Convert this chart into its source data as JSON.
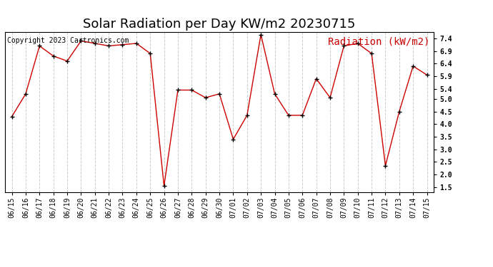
{
  "title": "Solar Radiation per Day KW/m2 20230715",
  "copyright_text": "Copyright 2023 Cartronics.com",
  "legend_label": "Radiation (kW/m2)",
  "dates": [
    "06/15",
    "06/16",
    "06/17",
    "06/18",
    "06/19",
    "06/20",
    "06/21",
    "06/22",
    "06/23",
    "06/24",
    "06/25",
    "06/26",
    "06/27",
    "06/28",
    "06/29",
    "06/30",
    "07/01",
    "07/02",
    "07/03",
    "07/04",
    "07/05",
    "07/06",
    "07/07",
    "07/08",
    "07/09",
    "07/10",
    "07/11",
    "07/12",
    "07/13",
    "07/14",
    "07/15"
  ],
  "values": [
    4.3,
    5.2,
    7.1,
    6.7,
    6.5,
    7.3,
    7.2,
    7.1,
    7.15,
    7.2,
    6.8,
    1.55,
    5.35,
    5.35,
    5.05,
    5.2,
    3.4,
    4.35,
    7.55,
    5.2,
    4.35,
    4.35,
    5.8,
    5.05,
    7.1,
    7.2,
    6.8,
    2.35,
    4.5,
    6.3,
    5.95
  ],
  "line_color": "#cc0000",
  "marker": "+",
  "marker_color": "#000000",
  "ylim": [
    1.3,
    7.65
  ],
  "yticks": [
    1.5,
    2.0,
    2.5,
    3.0,
    3.5,
    4.0,
    4.5,
    5.0,
    5.4,
    5.9,
    6.4,
    6.9,
    7.4
  ],
  "background_color": "#ffffff",
  "grid_color": "#cccccc",
  "title_fontsize": 13,
  "copyright_fontsize": 7,
  "legend_fontsize": 10,
  "tick_fontsize": 7
}
